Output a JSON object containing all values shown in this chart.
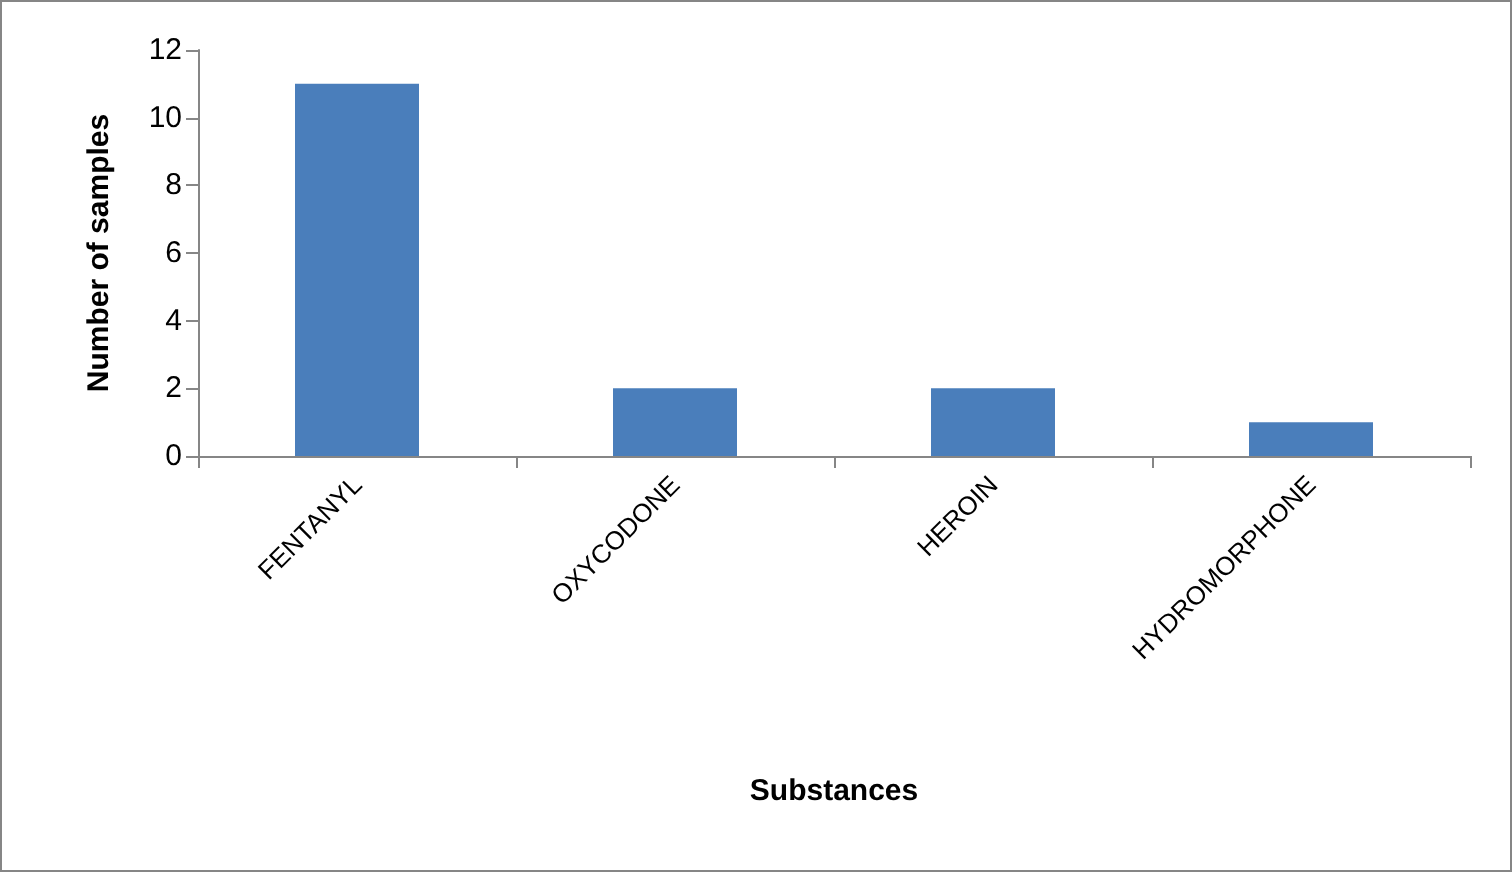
{
  "chart_data": {
    "type": "bar",
    "xlabel": "Substances",
    "ylabel": "Number of samples",
    "categories": [
      "FENTANYL",
      "OXYCODONE",
      "HEROIN",
      "HYDROMORPHONE"
    ],
    "values": [
      11,
      2,
      2,
      1
    ],
    "color": "#4a7ebb",
    "ylim": [
      0,
      12
    ],
    "yticks": [
      0,
      2,
      4,
      6,
      8,
      10,
      12
    ],
    "grid": false
  }
}
